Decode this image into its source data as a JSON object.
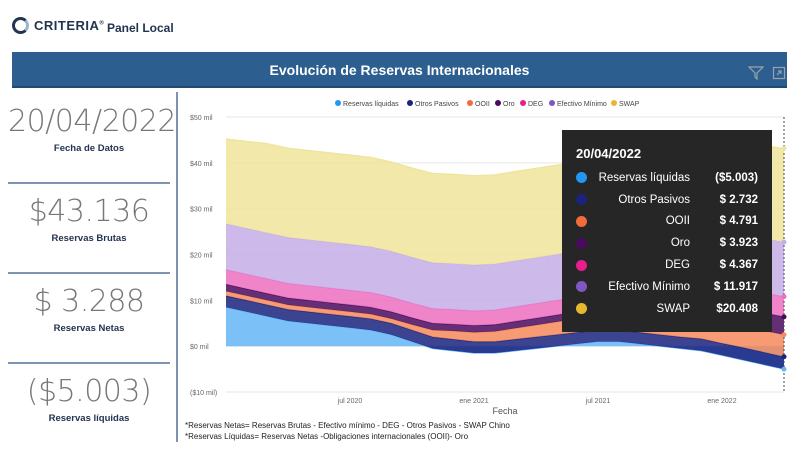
{
  "header": {
    "brand": "CRITERIA",
    "brand_mark": "®",
    "panel_title": "Panel Local"
  },
  "banner": {
    "title": "Evolución de Reservas Internacionales"
  },
  "kpis": [
    {
      "value": "20/04/2022",
      "label": "Fecha de Datos"
    },
    {
      "value": "$43.136",
      "label": "Reservas Brutas"
    },
    {
      "value": "$ 3.288",
      "label": "Reservas Netas"
    },
    {
      "value": "($5.003)",
      "label": "Reservas líquidas"
    }
  ],
  "tooltip": {
    "date": "20/04/2022",
    "rows": [
      {
        "name": "Reservas líquidas",
        "value": "($5.003)",
        "color": "#2196f3"
      },
      {
        "name": "Otros Pasivos",
        "value": "$ 2.732",
        "color": "#1a237e"
      },
      {
        "name": "OOII",
        "value": "$ 4.791",
        "color": "#f26b38"
      },
      {
        "name": "Oro",
        "value": "$ 3.923",
        "color": "#4a0a5e"
      },
      {
        "name": "DEG",
        "value": "$ 4.367",
        "color": "#e91e8c"
      },
      {
        "name": "Efectivo Mínimo",
        "value": "$ 11.917",
        "color": "#7e57c2"
      },
      {
        "name": "SWAP",
        "value": "$20.408",
        "color": "#e6b82e"
      }
    ]
  },
  "notes": [
    "*Reservas Netas= Reservas Brutas - Efectivo mínimo - DEG - Otros Pasivos - SWAP Chino",
    "*Reservas Líquidas= Reservas Netas -Obligaciones internacionales (OOII)- Oro"
  ],
  "chart_data": {
    "type": "area",
    "stacked": true,
    "legend_position": "top",
    "xlabel": "Fecha",
    "x_ticks": [
      "jul 2020",
      "ene 2021",
      "jul 2021",
      "ene 2022"
    ],
    "y_ticks": [
      "$50 mil",
      "$40 mil",
      "$30 mil",
      "$20 mil",
      "$10 mil",
      "$0 mil",
      "($10 mil)"
    ],
    "ylim": [
      -10,
      50
    ],
    "x": [
      "2020-01",
      "2020-02",
      "2020-03",
      "2020-04",
      "2020-05",
      "2020-06",
      "2020-07",
      "2020-08",
      "2020-09",
      "2020-10",
      "2020-11",
      "2020-12",
      "2021-01",
      "2021-02",
      "2021-03",
      "2021-04",
      "2021-05",
      "2021-06",
      "2021-07",
      "2021-08",
      "2021-09",
      "2021-10",
      "2021-11",
      "2021-12",
      "2022-01",
      "2022-02",
      "2022-03",
      "2022-04"
    ],
    "series": [
      {
        "name": "Reservas líquidas",
        "color": "#64b5f6",
        "values": [
          8.5,
          7.5,
          6.5,
          5.5,
          5,
          4.5,
          4,
          3.5,
          2.5,
          1,
          -0.5,
          -1,
          -1.5,
          -1.5,
          -1,
          -0.5,
          0,
          0.5,
          1,
          1,
          0.5,
          0,
          -0.5,
          -1,
          -2,
          -3,
          -4,
          -5
        ]
      },
      {
        "name": "Otros Pasivos",
        "color": "#1a237e",
        "values": [
          2.5,
          2.5,
          2.5,
          2.5,
          2.5,
          2.5,
          2.5,
          2.5,
          2.5,
          2.5,
          2.5,
          2.5,
          2.5,
          2.5,
          2.5,
          2.5,
          2.5,
          2.5,
          2.5,
          2.5,
          2.5,
          2.5,
          2.5,
          2.6,
          2.6,
          2.7,
          2.7,
          2.7
        ]
      },
      {
        "name": "OOII",
        "color": "#f48a5c",
        "values": [
          1,
          1,
          1,
          1,
          1,
          1,
          1,
          1,
          1,
          1.2,
          1.5,
          1.8,
          2,
          2.2,
          2.4,
          2.6,
          2.8,
          3,
          3.2,
          3.4,
          3.6,
          3.8,
          4,
          4.2,
          4.4,
          4.6,
          4.7,
          4.8
        ]
      },
      {
        "name": "Oro",
        "color": "#4a0a5e",
        "values": [
          1.5,
          1.5,
          1.5,
          1.5,
          1.5,
          1.5,
          1.5,
          1.5,
          1.5,
          1.5,
          1.5,
          1.5,
          1.5,
          1.5,
          1.5,
          1.5,
          1.5,
          1.5,
          1.5,
          1.5,
          1.5,
          1.5,
          1.5,
          1.5,
          3.9,
          3.9,
          3.9,
          3.9
        ]
      },
      {
        "name": "DEG",
        "color": "#ec6fc0",
        "values": [
          3.2,
          3.2,
          3.2,
          3.2,
          3.2,
          3.2,
          3.2,
          3.2,
          3.2,
          3.2,
          3.2,
          3.2,
          3.2,
          3.2,
          3.2,
          3.2,
          3.2,
          3.2,
          3.2,
          3.2,
          4.3,
          4.3,
          4.3,
          4.3,
          4.3,
          4.4,
          4.4,
          4.4
        ]
      },
      {
        "name": "Efectivo Mínimo",
        "color": "#c4aee8",
        "values": [
          10,
          10,
          10,
          10,
          10,
          10,
          10,
          10,
          10,
          10,
          10,
          10,
          10,
          10,
          10,
          10,
          10,
          10,
          10,
          10,
          10,
          10,
          10.5,
          11,
          11.2,
          11.5,
          11.8,
          11.9
        ]
      },
      {
        "name": "SWAP",
        "color": "#efe49a",
        "values": [
          18.5,
          19,
          19.5,
          19.5,
          19.5,
          19.5,
          19.5,
          19.5,
          19.5,
          19.5,
          19.5,
          19.5,
          19.5,
          19.5,
          19.5,
          19.5,
          19.5,
          19.5,
          19.5,
          19.5,
          19.5,
          19.5,
          19.5,
          20,
          20,
          20.2,
          20.3,
          20.4
        ]
      }
    ]
  }
}
